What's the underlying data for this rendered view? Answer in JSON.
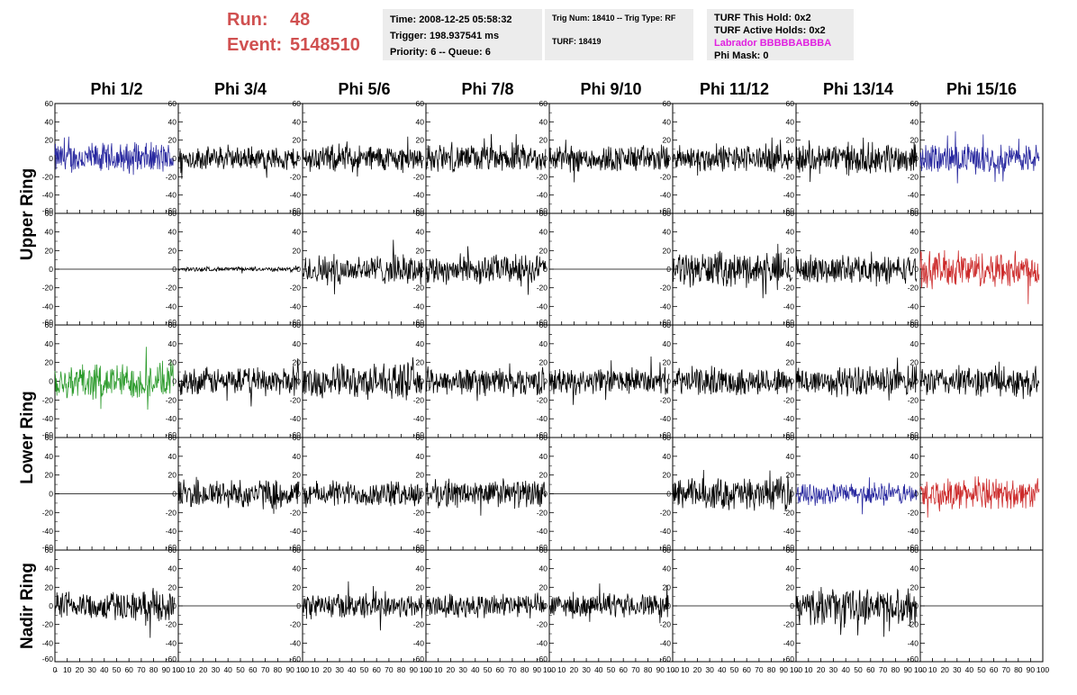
{
  "header": {
    "run_label": "Run:",
    "run_value": "48",
    "event_label": "Event:",
    "event_value": "5148510"
  },
  "info1": {
    "time": "Time: 2008-12-25 05:58:32",
    "trigger": "Trigger: 198.937541 ms",
    "priority": "Priority: 6 -- Queue: 6"
  },
  "info2": {
    "trig": "Trig Num: 18410 -- Trig Type: RF",
    "turf": "TURF: 18419"
  },
  "info3": {
    "hold": "TURF This Hold: 0x2",
    "active": "TURF Active Holds: 0x2",
    "labrador": "Labrador BBBBBABBBA",
    "mask": "Phi Mask: 0"
  },
  "colors": {
    "run": "#d05050",
    "labrador": "#e020e0",
    "blue": "#2a2aa0",
    "red": "#cc2a2a",
    "green": "#2a9a2a",
    "black": "#000000"
  },
  "chart_data": {
    "type": "line",
    "columns": [
      "Phi 1/2",
      "Phi 3/4",
      "Phi 5/6",
      "Phi 7/8",
      "Phi 9/10",
      "Phi 11/12",
      "Phi 13/14",
      "Phi 15/16"
    ],
    "rings": [
      "Upper Ring",
      "Lower Ring",
      "Nadir Ring"
    ],
    "xlim": [
      0,
      100
    ],
    "ylim": [
      -60,
      60
    ],
    "xticks": [
      "0",
      "10",
      "20",
      "30",
      "40",
      "50",
      "60",
      "70",
      "80",
      "90",
      "100"
    ],
    "yticks": [
      "60",
      "40",
      "20",
      "0",
      "-20",
      "-40",
      "-60"
    ],
    "traces": [
      [
        "blue",
        "black",
        "black",
        "black",
        "black",
        "black",
        "black",
        "blue"
      ],
      [
        "flat",
        "black",
        "black",
        "black",
        "flat",
        "black",
        "black",
        "red"
      ],
      [
        "green",
        "black",
        "black",
        "black",
        "black",
        "black",
        "black",
        "black"
      ],
      [
        "flat",
        "black",
        "black",
        "black",
        "flat",
        "black",
        "blue",
        "red"
      ],
      [
        "black",
        "flat",
        "black",
        "black",
        "black",
        "flat",
        "black",
        "flat"
      ]
    ],
    "amplitudes": [
      [
        15,
        11,
        13,
        13,
        13,
        13,
        15,
        14
      ],
      [
        0,
        2,
        14,
        14,
        0,
        16,
        13,
        17
      ],
      [
        17,
        13,
        16,
        13,
        12,
        13,
        14,
        14
      ],
      [
        0,
        14,
        12,
        13,
        0,
        15,
        10,
        14
      ],
      [
        14,
        0,
        12,
        12,
        11,
        0,
        17,
        0
      ]
    ]
  }
}
